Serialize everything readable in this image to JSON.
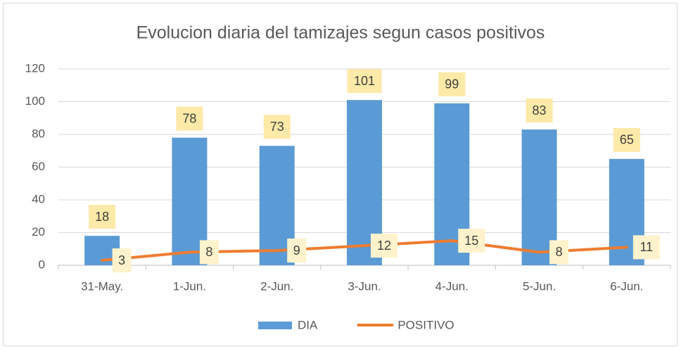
{
  "chart_data": {
    "type": "bar",
    "title": "Evolucion diaria del tamizajes segun casos positivos",
    "categories": [
      "31-May.",
      "1-Jun.",
      "2-Jun.",
      "3-Jun.",
      "4-Jun.",
      "5-Jun.",
      "6-Jun."
    ],
    "series": [
      {
        "name": "DIA",
        "type": "bar",
        "color": "#5b9bd5",
        "values": [
          18,
          78,
          73,
          101,
          99,
          83,
          65
        ]
      },
      {
        "name": "POSITIVO",
        "type": "line",
        "color": "#ed7d31",
        "values": [
          3,
          8,
          9,
          12,
          15,
          8,
          11
        ]
      }
    ],
    "ylim": [
      0,
      120
    ],
    "yticks": [
      0,
      20,
      40,
      60,
      80,
      100,
      120
    ],
    "grid": true,
    "legend": "bottom"
  }
}
